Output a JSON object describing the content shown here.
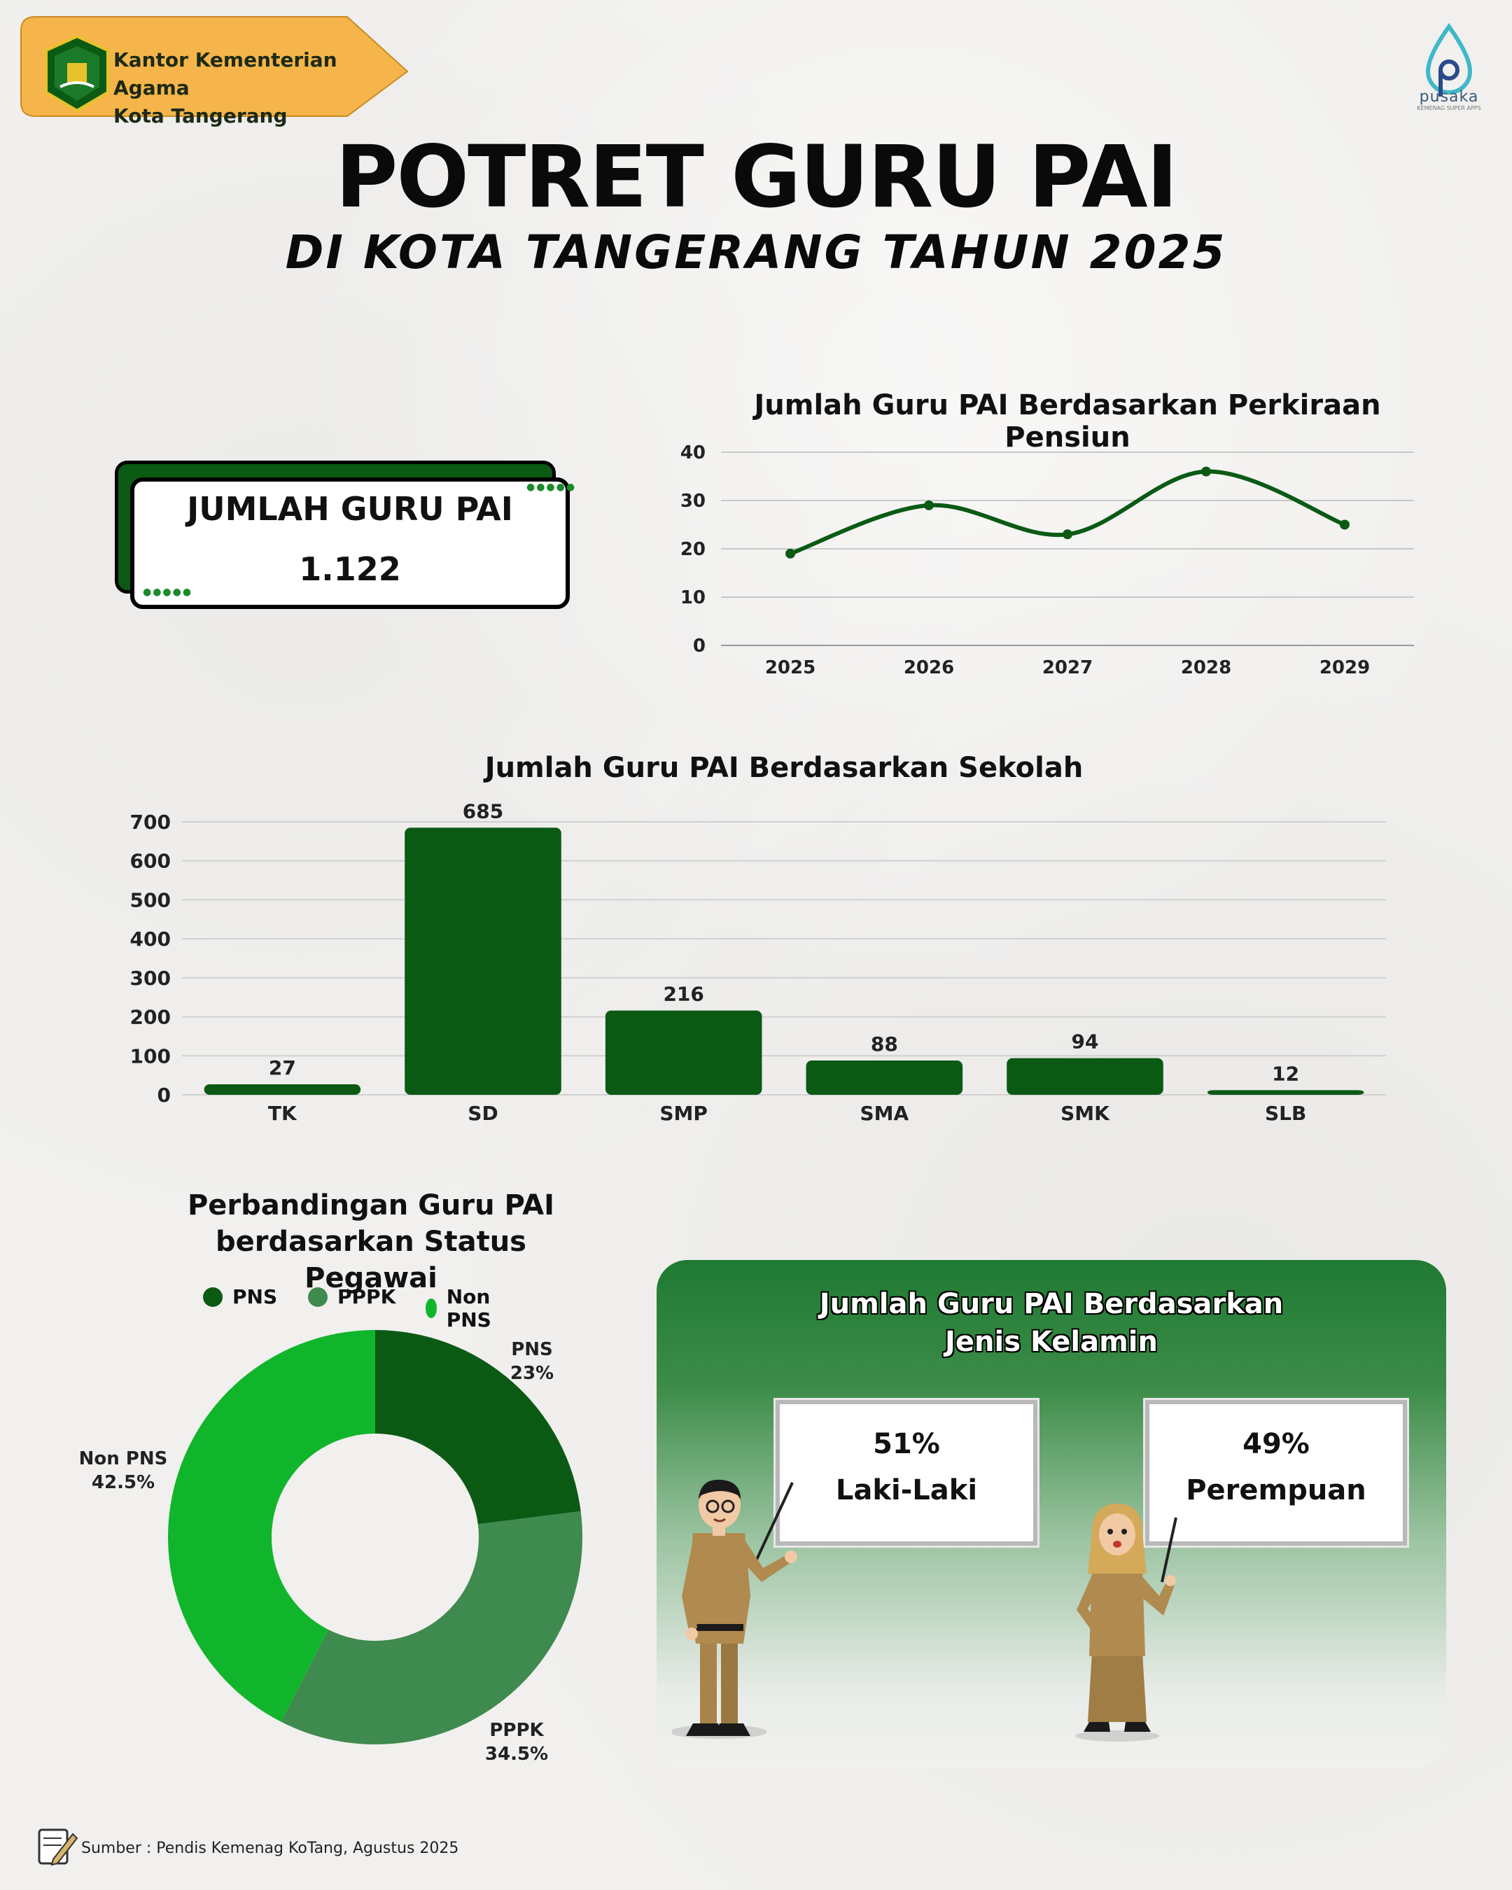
{
  "header": {
    "office_line1": "Kantor Kementerian Agama",
    "office_line2": "Kota Tangerang",
    "brand": "pusaka",
    "brand_tagline": "KEMENAG SUPER APPS"
  },
  "title": "POTRET GURU PAI",
  "subtitle": "DI KOTA TANGERANG TAHUN 2025",
  "total_card": {
    "label": "JUMLAH GURU PAI",
    "value": "1.122"
  },
  "gender": {
    "title_line1": "Jumlah Guru PAI Berdasarkan",
    "title_line2": "Jenis Kelamin",
    "male_pct": "51%",
    "male_label": "Laki-Laki",
    "female_pct": "49%",
    "female_label": "Perempuan"
  },
  "source": "Sumber : Pendis Kemenag KoTang, Agustus 2025",
  "colors": {
    "dark_green": "#0b5a14",
    "mid_green": "#3f8a4e",
    "bright_green": "#10b52c",
    "accent_orange": "#f5b54a"
  },
  "chart_data": [
    {
      "type": "line",
      "title": "Jumlah Guru PAI Berdasarkan Perkiraan Pensiun",
      "categories": [
        "2025",
        "2026",
        "2027",
        "2028",
        "2029"
      ],
      "values": [
        19,
        29,
        23,
        36,
        25
      ],
      "ylim": [
        0,
        40
      ],
      "yticks": [
        0,
        10,
        20,
        30,
        40
      ],
      "grid": true,
      "color": "#0b5a14"
    },
    {
      "type": "bar",
      "title": "Jumlah Guru PAI Berdasarkan Sekolah",
      "categories": [
        "TK",
        "SD",
        "SMP",
        "SMA",
        "SMK",
        "SLB"
      ],
      "values": [
        27,
        685,
        216,
        88,
        94,
        12
      ],
      "ylim": [
        0,
        700
      ],
      "yticks": [
        0,
        100,
        200,
        300,
        400,
        500,
        600,
        700
      ],
      "grid": true,
      "color": "#0b5a14"
    },
    {
      "type": "pie",
      "title": "Perbandingan Guru PAI berdasarkan Status Pegawai",
      "title_line1": "Perbandingan Guru PAI",
      "title_line2": "berdasarkan Status Pegawai",
      "legend_position": "top",
      "slices": [
        {
          "label": "PNS",
          "value": 23,
          "display": "23%",
          "color": "#0b5a14"
        },
        {
          "label": "PPPK",
          "value": 34.5,
          "display": "34.5%",
          "color": "#3f8a4e"
        },
        {
          "label": "Non PNS",
          "value": 42.5,
          "display": "42.5%",
          "color": "#10b52c"
        }
      ]
    }
  ]
}
